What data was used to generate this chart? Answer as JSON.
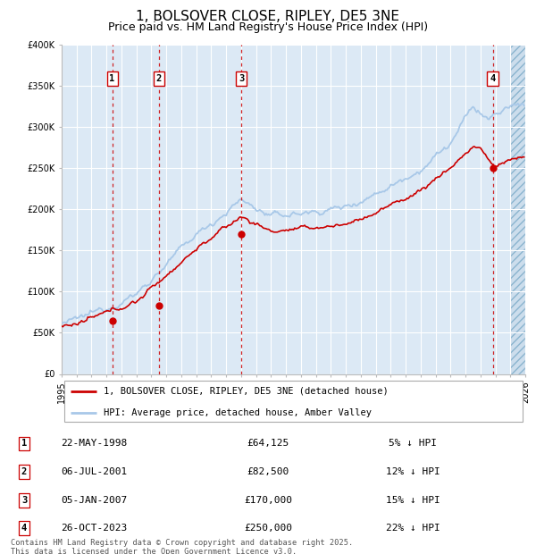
{
  "title": "1, BOLSOVER CLOSE, RIPLEY, DE5 3NE",
  "subtitle": "Price paid vs. HM Land Registry's House Price Index (HPI)",
  "title_fontsize": 11,
  "subtitle_fontsize": 9,
  "legend_line1": "1, BOLSOVER CLOSE, RIPLEY, DE5 3NE (detached house)",
  "legend_line2": "HPI: Average price, detached house, Amber Valley",
  "hpi_color": "#a8c8e8",
  "price_color": "#cc0000",
  "marker_color": "#cc0000",
  "vline_color": "#cc0000",
  "bg_color": "#dce9f5",
  "grid_color": "#ffffff",
  "footer": "Contains HM Land Registry data © Crown copyright and database right 2025.\nThis data is licensed under the Open Government Licence v3.0.",
  "transactions": [
    {
      "num": 1,
      "date": "22-MAY-1998",
      "price": 64125,
      "pct": "5% ↓ HPI",
      "year": 1998.38
    },
    {
      "num": 2,
      "date": "06-JUL-2001",
      "price": 82500,
      "pct": "12% ↓ HPI",
      "year": 2001.51
    },
    {
      "num": 3,
      "date": "05-JAN-2007",
      "price": 170000,
      "pct": "15% ↓ HPI",
      "year": 2007.01
    },
    {
      "num": 4,
      "date": "26-OCT-2023",
      "price": 250000,
      "pct": "22% ↓ HPI",
      "year": 2023.82
    }
  ],
  "xmin": 1995,
  "xmax": 2026,
  "ymin": 0,
  "ymax": 400000,
  "yticks": [
    0,
    50000,
    100000,
    150000,
    200000,
    250000,
    300000,
    350000,
    400000
  ]
}
